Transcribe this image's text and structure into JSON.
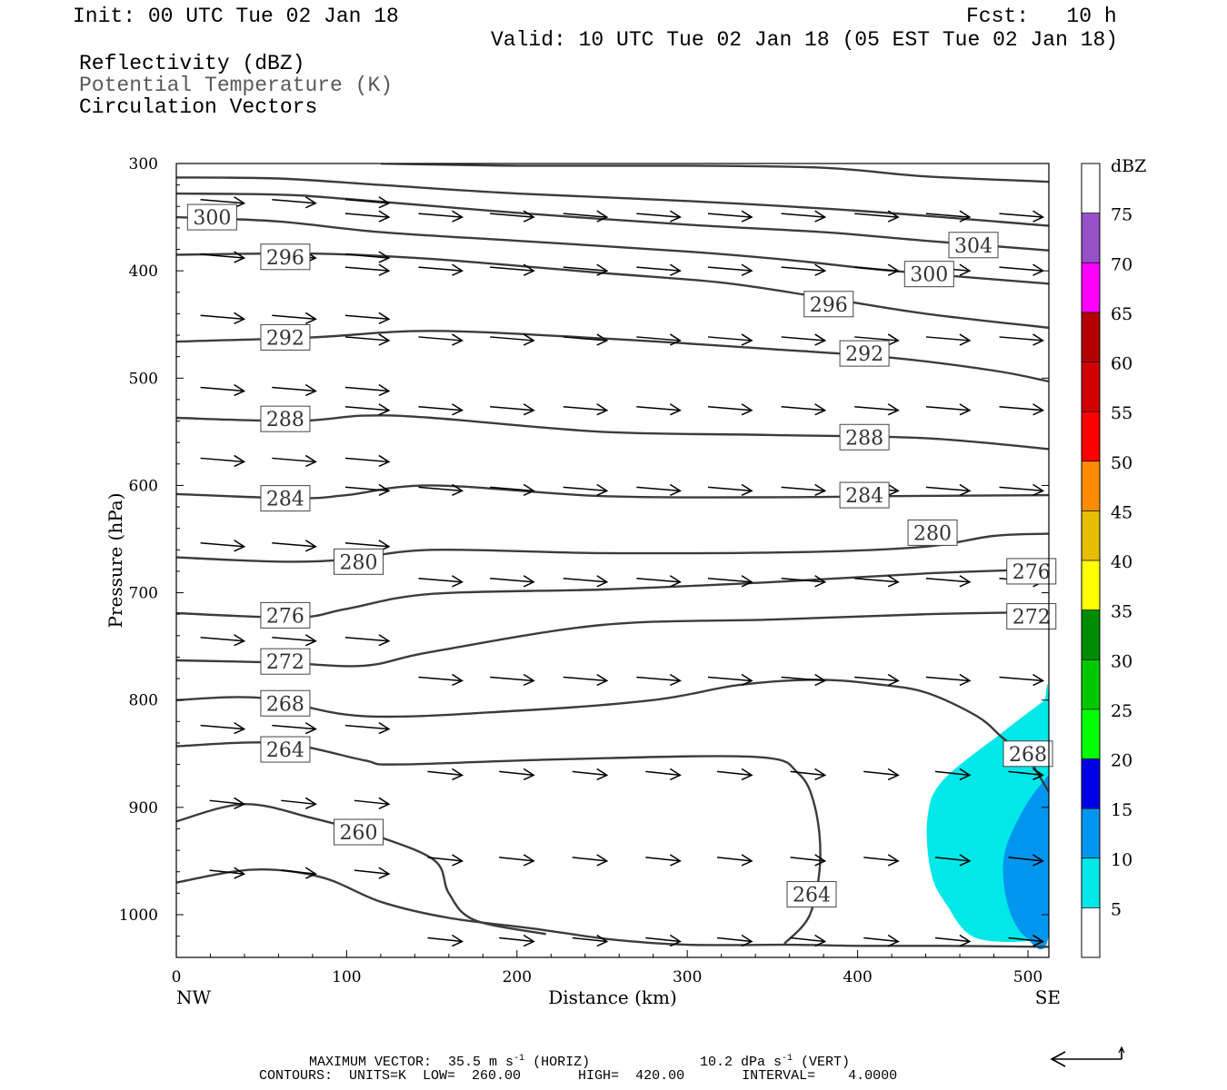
{
  "header": {
    "init": "Init: 00 UTC Tue 02 Jan 18",
    "fcst": "Fcst:   10 h",
    "valid": "Valid: 10 UTC Tue 02 Jan 18 (05 EST Tue 02 Jan 18)",
    "field1": "Reflectivity (dBZ)",
    "field2": "Potential Temperature (K)",
    "field3": "Circulation Vectors"
  },
  "colors": {
    "contour": "#3c3c3c",
    "field2_text": "#5a5a5a",
    "dbz_shade_5": "#00e8e8",
    "dbz_shade_10": "#0096f0"
  },
  "chart_data": {
    "type": "cross-section",
    "xlabel": "Distance (km)",
    "ylabel": "Pressure (hPa)",
    "xlim": [
      0,
      512
    ],
    "ylim": [
      1037,
      300
    ],
    "x_ticks": [
      "0",
      "100",
      "200",
      "300",
      "400",
      "500"
    ],
    "x_tick_values": [
      0,
      100,
      200,
      300,
      400,
      500
    ],
    "y_ticks": [
      "300",
      "400",
      "500",
      "600",
      "700",
      "800",
      "900",
      "1000"
    ],
    "y_tick_values": [
      300,
      400,
      500,
      600,
      700,
      800,
      900,
      1000
    ],
    "left_end_label": "NW",
    "right_end_label": "SE",
    "colorbar": {
      "title": "dBZ",
      "levels": [
        "5",
        "10",
        "15",
        "20",
        "25",
        "30",
        "35",
        "40",
        "45",
        "50",
        "55",
        "60",
        "65",
        "70",
        "75"
      ],
      "colors": [
        "#ffffff",
        "#00e8e8",
        "#0096f0",
        "#0000e6",
        "#00ff00",
        "#00c800",
        "#008c00",
        "#ffff00",
        "#e6be00",
        "#ff8c00",
        "#ff0000",
        "#d20000",
        "#b40000",
        "#ff00ff",
        "#9650c8",
        "#ffffff"
      ]
    },
    "reflectivity_regions": [
      {
        "level": 5,
        "points": [
          [
            510,
            800
          ],
          [
            485,
            830
          ],
          [
            450,
            875
          ],
          [
            441,
            910
          ],
          [
            443,
            960
          ],
          [
            452,
            990
          ],
          [
            470,
            1022
          ],
          [
            510,
            1022
          ],
          [
            512,
            1000
          ],
          [
            512,
            800
          ]
        ]
      },
      {
        "level": 10,
        "points": [
          [
            512,
            870
          ],
          [
            498,
            900
          ],
          [
            486,
            945
          ],
          [
            488,
            990
          ],
          [
            498,
            1020
          ],
          [
            512,
            1020
          ]
        ]
      }
    ],
    "theta_contours": [
      {
        "value": 260,
        "labels": [
          [
            107,
            923
          ]
        ],
        "points": [
          [
            0,
            970
          ],
          [
            45,
            958
          ],
          [
            85,
            965
          ],
          [
            120,
            988
          ],
          [
            160,
            1003
          ],
          [
            210,
            1013
          ],
          [
            255,
            1023
          ],
          [
            300,
            1028
          ],
          [
            360,
            1028
          ],
          [
            400,
            1029
          ],
          [
            450,
            1029
          ],
          [
            512,
            1030
          ]
        ]
      },
      {
        "value": 260,
        "labels": [],
        "points": [
          [
            0,
            913
          ],
          [
            40,
            897
          ],
          [
            80,
            910
          ],
          [
            120,
            928
          ],
          [
            152,
            950
          ],
          [
            160,
            980
          ],
          [
            175,
            1005
          ],
          [
            217,
            1018
          ]
        ]
      },
      {
        "value": 264,
        "labels": [
          [
            64,
            846
          ],
          [
            373,
            981
          ]
        ],
        "points": [
          [
            0,
            843
          ],
          [
            60,
            840
          ],
          [
            110,
            856
          ],
          [
            130,
            860
          ],
          [
            230,
            855
          ],
          [
            340,
            853
          ],
          [
            365,
            868
          ],
          [
            375,
            900
          ],
          [
            378,
            950
          ],
          [
            372,
            1000
          ],
          [
            357,
            1027
          ]
        ]
      },
      {
        "value": 268,
        "labels": [
          [
            64,
            803
          ],
          [
            500,
            850
          ]
        ],
        "points": [
          [
            0,
            800
          ],
          [
            50,
            798
          ],
          [
            110,
            815
          ],
          [
            200,
            810
          ],
          [
            280,
            800
          ],
          [
            330,
            786
          ],
          [
            375,
            781
          ],
          [
            410,
            785
          ],
          [
            440,
            793
          ],
          [
            470,
            815
          ],
          [
            485,
            835
          ],
          [
            500,
            855
          ],
          [
            512,
            885
          ]
        ]
      },
      {
        "value": 272,
        "labels": [
          [
            64,
            764
          ],
          [
            502,
            722
          ]
        ],
        "points": [
          [
            0,
            763
          ],
          [
            60,
            765
          ],
          [
            110,
            768
          ],
          [
            150,
            755
          ],
          [
            250,
            730
          ],
          [
            350,
            725
          ],
          [
            440,
            720
          ],
          [
            512,
            718
          ]
        ]
      },
      {
        "value": 276,
        "labels": [
          [
            64,
            721
          ],
          [
            502,
            680
          ]
        ],
        "points": [
          [
            0,
            719
          ],
          [
            70,
            723
          ],
          [
            100,
            715
          ],
          [
            150,
            701
          ],
          [
            250,
            697
          ],
          [
            350,
            690
          ],
          [
            440,
            682
          ],
          [
            512,
            678
          ]
        ]
      },
      {
        "value": 280,
        "labels": [
          [
            107,
            671
          ],
          [
            444,
            644
          ]
        ],
        "points": [
          [
            0,
            667
          ],
          [
            60,
            671
          ],
          [
            100,
            669
          ],
          [
            150,
            660
          ],
          [
            250,
            663
          ],
          [
            370,
            662
          ],
          [
            440,
            657
          ],
          [
            480,
            647
          ],
          [
            512,
            645
          ]
        ]
      },
      {
        "value": 284,
        "labels": [
          [
            64,
            612
          ],
          [
            404,
            609
          ]
        ],
        "points": [
          [
            0,
            608
          ],
          [
            70,
            612
          ],
          [
            100,
            609
          ],
          [
            150,
            600
          ],
          [
            250,
            610
          ],
          [
            350,
            611
          ],
          [
            420,
            610
          ],
          [
            512,
            609
          ]
        ]
      },
      {
        "value": 288,
        "labels": [
          [
            64,
            538
          ],
          [
            404,
            555
          ]
        ],
        "points": [
          [
            0,
            537
          ],
          [
            70,
            540
          ],
          [
            110,
            535
          ],
          [
            150,
            537
          ],
          [
            250,
            550
          ],
          [
            350,
            553
          ],
          [
            440,
            556
          ],
          [
            512,
            566
          ]
        ]
      },
      {
        "value": 292,
        "labels": [
          [
            64,
            462
          ],
          [
            404,
            477
          ]
        ],
        "points": [
          [
            0,
            466
          ],
          [
            80,
            462
          ],
          [
            150,
            456
          ],
          [
            250,
            463
          ],
          [
            350,
            473
          ],
          [
            420,
            481
          ],
          [
            480,
            493
          ],
          [
            512,
            503
          ]
        ]
      },
      {
        "value": 296,
        "labels": [
          [
            64,
            387
          ],
          [
            383,
            431
          ]
        ],
        "points": [
          [
            0,
            385
          ],
          [
            80,
            384
          ],
          [
            150,
            389
          ],
          [
            250,
            402
          ],
          [
            320,
            411
          ],
          [
            380,
            425
          ],
          [
            440,
            440
          ],
          [
            512,
            453
          ]
        ]
      },
      {
        "value": 300,
        "labels": [
          [
            21,
            350
          ],
          [
            442,
            403
          ]
        ],
        "points": [
          [
            0,
            350
          ],
          [
            60,
            354
          ],
          [
            120,
            364
          ],
          [
            200,
            372
          ],
          [
            300,
            382
          ],
          [
            360,
            390
          ],
          [
            420,
            400
          ],
          [
            512,
            412
          ]
        ]
      },
      {
        "value": 304,
        "labels": [
          [
            468,
            376
          ]
        ],
        "points": [
          [
            0,
            328
          ],
          [
            60,
            329
          ],
          [
            100,
            333
          ],
          [
            200,
            346
          ],
          [
            300,
            357
          ],
          [
            380,
            364
          ],
          [
            440,
            372
          ],
          [
            512,
            381
          ]
        ]
      },
      {
        "value": 308,
        "labels": [],
        "points": [
          [
            0,
            313
          ],
          [
            60,
            314
          ],
          [
            120,
            320
          ],
          [
            200,
            328
          ],
          [
            300,
            335
          ],
          [
            400,
            344
          ],
          [
            512,
            358
          ]
        ]
      },
      {
        "value": 312,
        "labels": [],
        "points": [
          [
            120,
            300
          ],
          [
            200,
            302
          ],
          [
            300,
            302
          ],
          [
            380,
            304
          ],
          [
            440,
            312
          ],
          [
            512,
            317
          ]
        ]
      }
    ],
    "vectors": {
      "rows": [
        {
          "p": 337,
          "x": [
            0,
            43,
            85,
            128
          ]
        },
        {
          "p": 350,
          "x": [
            128,
            171,
            213,
            256,
            299,
            341,
            384,
            427,
            469,
            512
          ]
        },
        {
          "p": 388,
          "x": [
            0,
            43,
            85,
            128
          ]
        },
        {
          "p": 400,
          "x": [
            128,
            171,
            213,
            256,
            299,
            341,
            384,
            427,
            469,
            512
          ]
        },
        {
          "p": 445,
          "x": [
            0,
            43,
            85,
            128
          ]
        },
        {
          "p": 465,
          "x": [
            128,
            171,
            213,
            256,
            299,
            341,
            384,
            427,
            469,
            512
          ]
        },
        {
          "p": 512,
          "x": [
            0,
            43,
            85,
            128
          ]
        },
        {
          "p": 530,
          "x": [
            128,
            171,
            213,
            256,
            299,
            341,
            384,
            427,
            469,
            512
          ]
        },
        {
          "p": 578,
          "x": [
            0,
            43,
            85,
            128
          ]
        },
        {
          "p": 605,
          "x": [
            128,
            171,
            213,
            256,
            299,
            341,
            384,
            427,
            469,
            512
          ]
        },
        {
          "p": 657,
          "x": [
            0,
            43,
            85,
            128
          ]
        },
        {
          "p": 690,
          "x": [
            171,
            213,
            256,
            299,
            341,
            384,
            427,
            469,
            512
          ]
        },
        {
          "p": 745,
          "x": [
            0,
            43,
            85,
            128
          ]
        },
        {
          "p": 782,
          "x": [
            171,
            213,
            256,
            299,
            341,
            384,
            427,
            469,
            512
          ]
        },
        {
          "p": 827,
          "x": [
            0,
            43,
            85,
            128
          ]
        },
        {
          "p": 870,
          "x": [
            171,
            213,
            256,
            299,
            341,
            384,
            427,
            469,
            512
          ]
        },
        {
          "p": 897,
          "x": [
            0,
            43,
            85,
            128
          ]
        },
        {
          "p": 950,
          "x": [
            171,
            213,
            256,
            299,
            341,
            384,
            427,
            469,
            512
          ]
        },
        {
          "p": 962,
          "x": [
            0,
            43,
            85,
            128
          ]
        },
        {
          "p": 1025,
          "x": [
            171,
            213,
            256,
            299,
            341,
            384,
            427,
            469,
            512
          ]
        }
      ]
    }
  },
  "footer": {
    "max_vector": "MAXIMUM VECTOR:  35.5 m s",
    "max_vector_exp": "-1",
    "max_vector_horiz": " (HORIZ)",
    "max_vector_vert": "10.2 dPa s",
    "max_vector_vert_exp": "-1",
    "max_vector_vert_tail": " (VERT)",
    "contours": "CONTOURS:  UNITS=K  LOW=  260.00       HIGH=  420.00       INTERVAL=    4.0000"
  }
}
